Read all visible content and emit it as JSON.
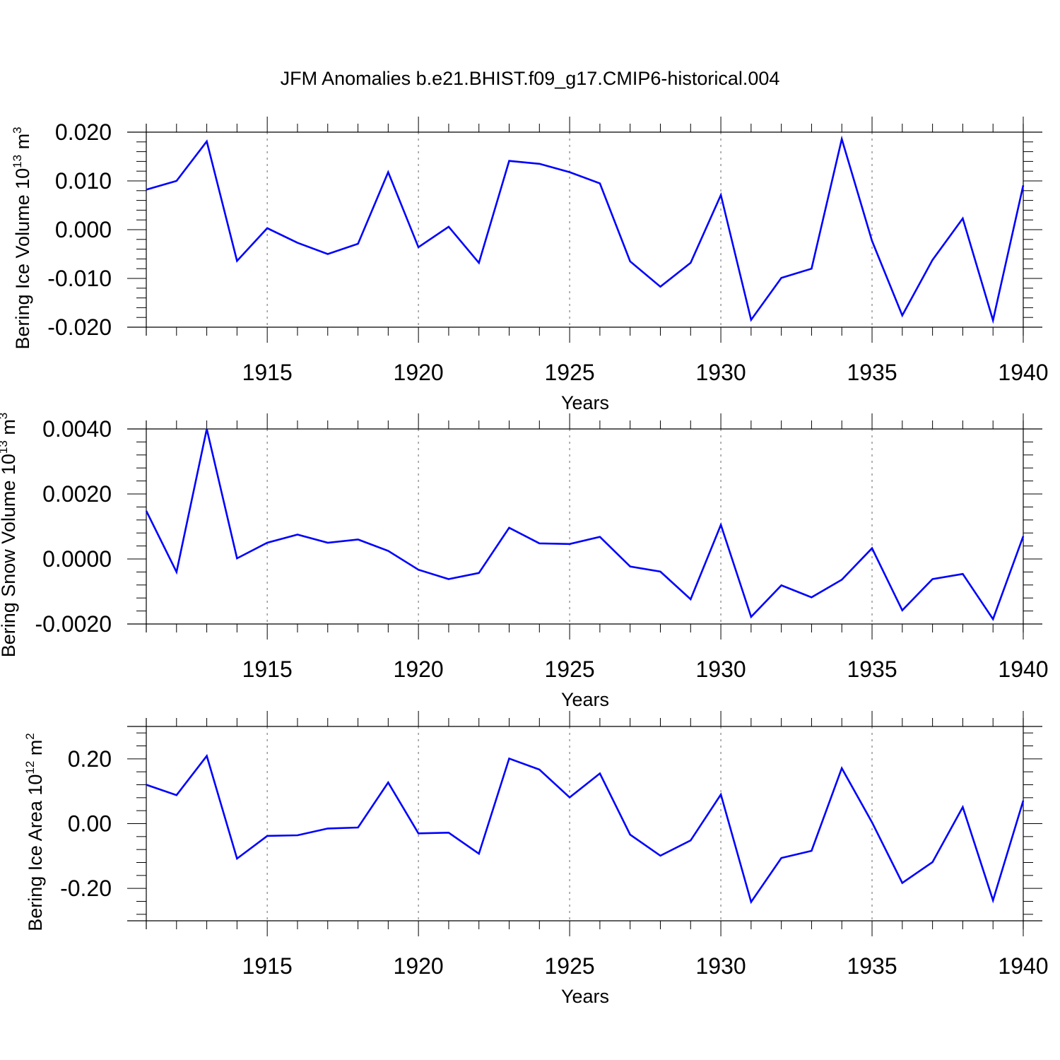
{
  "title": "JFM Anomalies b.e21.BHIST.f09_g17.CMIP6-historical.004",
  "colors": {
    "line": "#0000ff",
    "axis": "#000000",
    "grid": "#888888"
  },
  "chart_data": [
    {
      "type": "line",
      "xlabel": "Years",
      "ylabel": "Bering Ice Volume 10",
      "ylabel_exp": "13",
      "ylabel_unit": "m",
      "ylabel_unit_exp": "3",
      "xlim": [
        1911,
        1940
      ],
      "ylim": [
        -0.02,
        0.02
      ],
      "yticks": [
        -0.02,
        -0.01,
        0.0,
        0.01,
        0.02
      ],
      "ytick_labels": [
        "-0.020",
        "-0.010",
        "0.000",
        "0.010",
        "0.020"
      ],
      "xticks": [
        1915,
        1920,
        1925,
        1930,
        1935,
        1940
      ],
      "xtick_labels": [
        "1915",
        "1920",
        "1925",
        "1930",
        "1935",
        "1940"
      ],
      "grid": "vertical dashed at major x ticks",
      "x": [
        1911,
        1912,
        1913,
        1914,
        1915,
        1916,
        1917,
        1918,
        1919,
        1920,
        1921,
        1922,
        1923,
        1924,
        1925,
        1926,
        1927,
        1928,
        1929,
        1930,
        1931,
        1932,
        1933,
        1934,
        1935,
        1936,
        1937,
        1938,
        1939,
        1940
      ],
      "series": [
        {
          "values": [
            0.0082,
            0.01,
            0.0181,
            -0.0064,
            0.0003,
            -0.0027,
            -0.005,
            -0.0029,
            0.0118,
            -0.0036,
            0.0006,
            -0.0068,
            0.0141,
            0.0135,
            0.0118,
            0.0095,
            -0.0065,
            -0.0117,
            -0.0068,
            0.0071,
            -0.0185,
            -0.0099,
            -0.008,
            0.0186,
            -0.0023,
            -0.0176,
            -0.0062,
            0.0023,
            -0.0186,
            0.0091
          ]
        }
      ]
    },
    {
      "type": "line",
      "xlabel": "Years",
      "ylabel": "Bering Snow Volume 10",
      "ylabel_exp": "13",
      "ylabel_unit": "m",
      "ylabel_unit_exp": "3",
      "xlim": [
        1911,
        1940
      ],
      "ylim": [
        -0.002,
        0.004
      ],
      "yticks": [
        -0.002,
        0.0,
        0.002,
        0.004
      ],
      "ytick_labels": [
        "-0.0020",
        "0.0000",
        "0.0020",
        "0.0040"
      ],
      "xticks": [
        1915,
        1920,
        1925,
        1930,
        1935,
        1940
      ],
      "xtick_labels": [
        "1915",
        "1920",
        "1925",
        "1930",
        "1935",
        "1940"
      ],
      "grid": "vertical dashed at major x ticks",
      "x": [
        1911,
        1912,
        1913,
        1914,
        1915,
        1916,
        1917,
        1918,
        1919,
        1920,
        1921,
        1922,
        1923,
        1924,
        1925,
        1926,
        1927,
        1928,
        1929,
        1930,
        1931,
        1932,
        1933,
        1934,
        1935,
        1936,
        1937,
        1938,
        1939,
        1940
      ],
      "series": [
        {
          "values": [
            0.00148,
            -0.0004,
            0.004,
            2e-05,
            0.0005,
            0.00075,
            0.0005,
            0.0006,
            0.00025,
            -0.00033,
            -0.00062,
            -0.00043,
            0.00096,
            0.00048,
            0.00046,
            0.00068,
            -0.00023,
            -0.00039,
            -0.00124,
            0.00105,
            -0.00178,
            -0.00081,
            -0.00118,
            -0.00064,
            0.00033,
            -0.00158,
            -0.00062,
            -0.00046,
            -0.00185,
            0.0007
          ]
        }
      ]
    },
    {
      "type": "line",
      "xlabel": "Years",
      "ylabel": "Bering Ice Area 10",
      "ylabel_exp": "12",
      "ylabel_unit": "m",
      "ylabel_unit_exp": "2",
      "xlim": [
        1911,
        1940
      ],
      "ylim": [
        -0.3,
        0.3
      ],
      "yticks": [
        -0.2,
        0.0,
        0.2
      ],
      "ytick_labels": [
        "-0.20",
        "0.00",
        "0.20"
      ],
      "xticks": [
        1915,
        1920,
        1925,
        1930,
        1935,
        1940
      ],
      "xtick_labels": [
        "1915",
        "1920",
        "1925",
        "1930",
        "1935",
        "1940"
      ],
      "grid": "vertical dashed at major x ticks",
      "x": [
        1911,
        1912,
        1913,
        1914,
        1915,
        1916,
        1917,
        1918,
        1919,
        1920,
        1921,
        1922,
        1923,
        1924,
        1925,
        1926,
        1927,
        1928,
        1929,
        1930,
        1931,
        1932,
        1933,
        1934,
        1935,
        1936,
        1937,
        1938,
        1939,
        1940
      ],
      "series": [
        {
          "values": [
            0.12,
            0.088,
            0.209,
            -0.108,
            -0.038,
            -0.036,
            -0.015,
            -0.012,
            0.127,
            -0.03,
            -0.028,
            -0.093,
            0.201,
            0.167,
            0.081,
            0.155,
            -0.034,
            -0.099,
            -0.052,
            0.09,
            -0.242,
            -0.106,
            -0.084,
            0.171,
            0.004,
            -0.183,
            -0.119,
            0.051,
            -0.237,
            0.071
          ]
        }
      ]
    }
  ]
}
